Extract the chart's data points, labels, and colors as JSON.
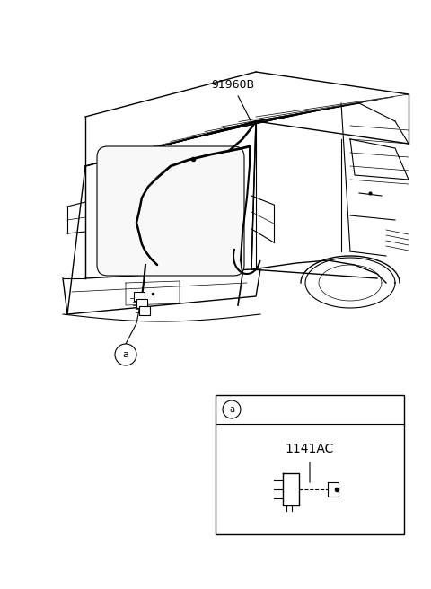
{
  "background_color": "#ffffff",
  "fig_width": 4.8,
  "fig_height": 6.56,
  "dpi": 100,
  "label_91960B": "91960B",
  "label_1141AC": "1141AC",
  "label_a": "a"
}
